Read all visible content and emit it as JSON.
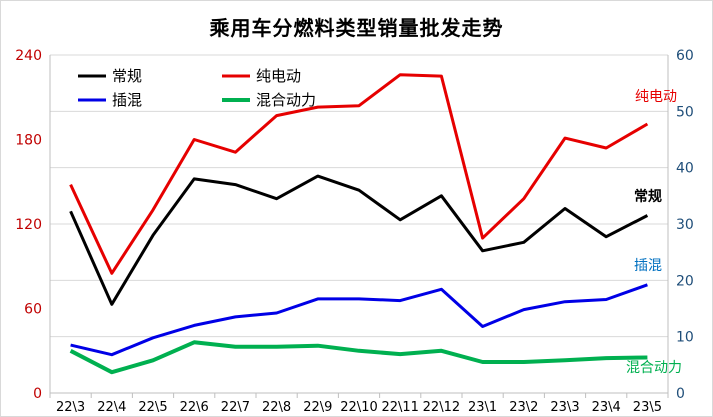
{
  "chart_data": {
    "type": "line",
    "title": "乘用车分燃料类型销量批发走势",
    "categories": [
      "22\\3",
      "22\\4",
      "22\\5",
      "22\\6",
      "22\\7",
      "22\\8",
      "22\\9",
      "22\\10",
      "22\\11",
      "22\\12",
      "23\\1",
      "23\\2",
      "23\\3",
      "23\\4",
      "23\\5"
    ],
    "y_left": {
      "ylim": [
        0,
        240
      ],
      "ticks": [
        "0",
        "60",
        "120",
        "180",
        "240"
      ]
    },
    "y_right": {
      "ylim": [
        0,
        60
      ],
      "ticks": [
        "0",
        "10",
        "20",
        "30",
        "40",
        "50",
        "60"
      ]
    },
    "grid": "horizontal",
    "legend": "top-left",
    "series": [
      {
        "name": "常规",
        "axis": "left",
        "color": "#000000",
        "annotation": "常规",
        "values": [
          129,
          63,
          112,
          152,
          148,
          138,
          154,
          144,
          123,
          140,
          101,
          107,
          131,
          111,
          126
        ]
      },
      {
        "name": "纯电动",
        "axis": "left",
        "color": "#e60000",
        "annotation": "纯电动",
        "values": [
          148,
          85,
          130,
          180,
          171,
          197,
          203,
          204,
          226,
          225,
          110,
          138,
          181,
          174,
          191
        ]
      },
      {
        "name": "插混",
        "axis": "right",
        "color": "#0000e6",
        "annotation": "插混",
        "values": [
          8.5,
          6.8,
          9.8,
          12.0,
          13.5,
          14.2,
          16.7,
          16.7,
          16.4,
          18.4,
          11.8,
          14.8,
          16.2,
          16.6,
          19.2
        ]
      },
      {
        "name": "混合动力",
        "axis": "right",
        "color": "#00b050",
        "annotation": "混合动力",
        "values": [
          7.5,
          3.7,
          5.8,
          9.0,
          8.2,
          8.2,
          8.4,
          7.5,
          6.9,
          7.5,
          5.5,
          5.5,
          5.8,
          6.2,
          6.3
        ]
      }
    ]
  }
}
